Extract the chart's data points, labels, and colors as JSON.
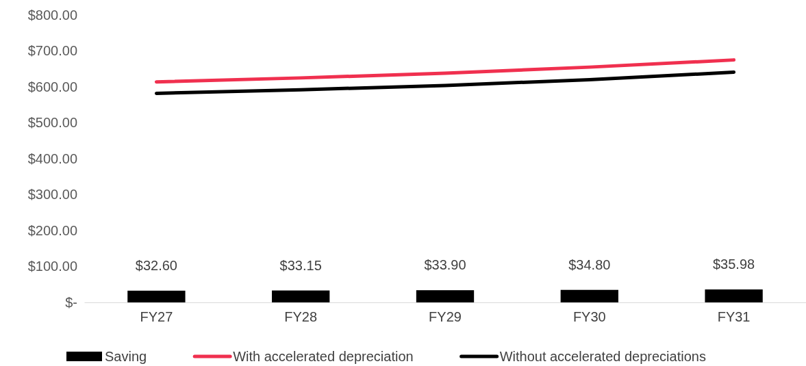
{
  "chart_data": {
    "type": "bar",
    "categories": [
      "FY27",
      "FY28",
      "FY29",
      "FY30",
      "FY31"
    ],
    "series": [
      {
        "name": "Saving",
        "color": "#000000",
        "values": [
          32.6,
          33.15,
          33.9,
          34.8,
          35.98
        ],
        "value_labels": [
          "$32.60",
          "$33.15",
          "$33.90",
          "$34.80",
          "$35.98"
        ]
      },
      {
        "name": "With accelerated depreciation",
        "type": "line",
        "color": "#f0304f",
        "values": [
          614,
          625,
          638,
          655,
          675
        ]
      },
      {
        "name": "Without accelerated depreciations",
        "type": "line",
        "color": "#000000",
        "values": [
          582,
          592,
          604,
          620,
          641
        ]
      }
    ],
    "ylim": [
      0,
      800
    ],
    "yticks": [
      {
        "value": 0,
        "label": "$-"
      },
      {
        "value": 100,
        "label": "$100.00"
      },
      {
        "value": 200,
        "label": "$200.00"
      },
      {
        "value": 300,
        "label": "$300.00"
      },
      {
        "value": 400,
        "label": "$400.00"
      },
      {
        "value": 500,
        "label": "$500.00"
      },
      {
        "value": 600,
        "label": "$600.00"
      },
      {
        "value": 700,
        "label": "$700.00"
      },
      {
        "value": 800,
        "label": "$800.00"
      }
    ],
    "legend": "bottom",
    "marker": "none",
    "line_style": "solid"
  }
}
